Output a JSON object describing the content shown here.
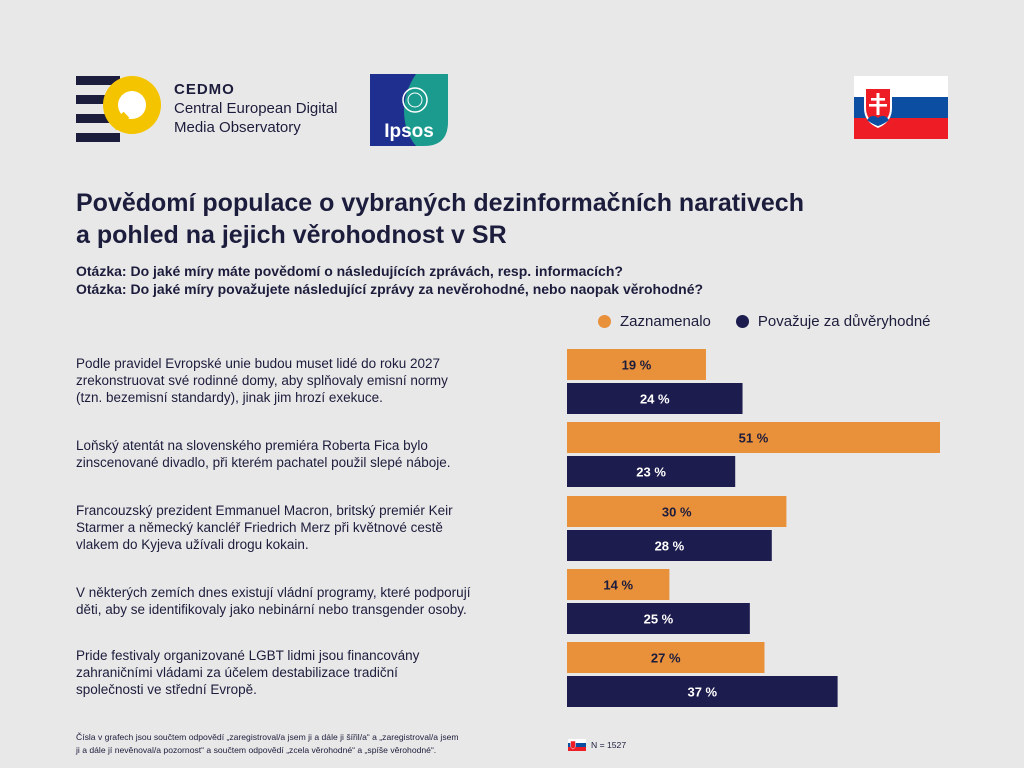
{
  "header": {
    "cedmo": {
      "name": "CEDMO",
      "line2": "Central European Digital",
      "line3": "Media Observatory"
    },
    "ipsos": {
      "name": "Ipsos"
    },
    "colors": {
      "cedmo_yellow": "#f5c400",
      "ipsos_teal": "#1a9b8e",
      "ipsos_navy": "#1f2f8f"
    }
  },
  "title": {
    "line1": "Povědomí populace o vybraných dezinformačních narativech",
    "line2": "a pohled na jejich věrohodnost v SR"
  },
  "questions": {
    "q1": "Otázka: Do jaké míry máte povědomí o následujících zprávách, resp. informacích?",
    "q2": "Otázka: Do jaké míry považujete následující zprávy za nevěrohodné, nebo naopak věrohodné?"
  },
  "legend": [
    {
      "label": "Zaznamenalo",
      "color": "#e8903a"
    },
    {
      "label": "Považuje za důvěryhodné",
      "color": "#1c1c4e"
    }
  ],
  "chart_data": {
    "type": "bar",
    "orientation": "horizontal",
    "categories": [
      "Podle pravidel Evropské unie budou muset lidé do roku 2027 zrekonstruovat své rodinné domy, aby splňovaly emisní normy (tzn. bezemisní standardy), jinak jim hrozí exekuce.",
      "Loňský atentát na slovenského premiéra Roberta Fica bylo zinscenované divadlo, při kterém pachatel použil slepé náboje.",
      "Francouzský prezident Emmanuel Macron, britský premiér Keir Starmer a německý kancléř Friedrich Merz při květnové cestě vlakem do Kyjeva užívali drogu kokain.",
      "V některých zemích dnes existují vládní programy, které podporují děti, aby se identifikovaly jako nebinární nebo transgender osoby.",
      "Pride festivaly organizované LGBT lidmi jsou financovány zahraničními vládami za účelem destabilizace tradiční společnosti ve střední Evropě."
    ],
    "series": [
      {
        "name": "Zaznamenalo",
        "values": [
          19,
          51,
          30,
          14,
          27
        ],
        "color": "#e8903a"
      },
      {
        "name": "Považuje za důvěryhodné",
        "values": [
          24,
          23,
          28,
          25,
          37
        ],
        "color": "#1c1c4e"
      }
    ],
    "value_suffix": " %",
    "xlim": [
      0,
      51
    ],
    "grid": false,
    "legend_position": "top-right"
  },
  "rows": [
    {
      "lines": [
        "Podle pravidel Evropské unie budou muset lidé do roku 2027",
        "zrekonstruovat své rodinné domy, aby splňovaly emisní normy",
        "(tzn. bezemisní standardy), jinak jim hrozí exekuce."
      ]
    },
    {
      "lines": [
        "Loňský atentát na slovenského premiéra Roberta Fica bylo",
        "zinscenované divadlo, při kterém pachatel použil slepé náboje."
      ]
    },
    {
      "lines": [
        "Francouzský prezident Emmanuel Macron, britský premiér Keir",
        "Starmer a německý kancléř Friedrich Merz při květnové cestě",
        "vlakem do Kyjeva užívali drogu kokain."
      ]
    },
    {
      "lines": [
        "V některých zemích dnes existují vládní programy, které podporují",
        "děti, aby se identifikovaly jako nebinární nebo transgender osoby."
      ]
    },
    {
      "lines": [
        "Pride festivaly organizované LGBT lidmi jsou financovány",
        "zahraničními vládami za účelem destabilizace tradiční",
        "společnosti ve střední Evropě."
      ]
    }
  ],
  "footer": {
    "note_line1": "Čísla v grafech jsou součtem odpovědí „zaregistroval/a jsem ji a dále ji šířil/a“ a „zaregistroval/a jsem",
    "note_line2": "ji a dále jí nevěnoval/a pozornost“ a součtem odpovědí „zcela věrohodné“ a „spíše věrohodné“.",
    "sample": "N = 1527"
  }
}
